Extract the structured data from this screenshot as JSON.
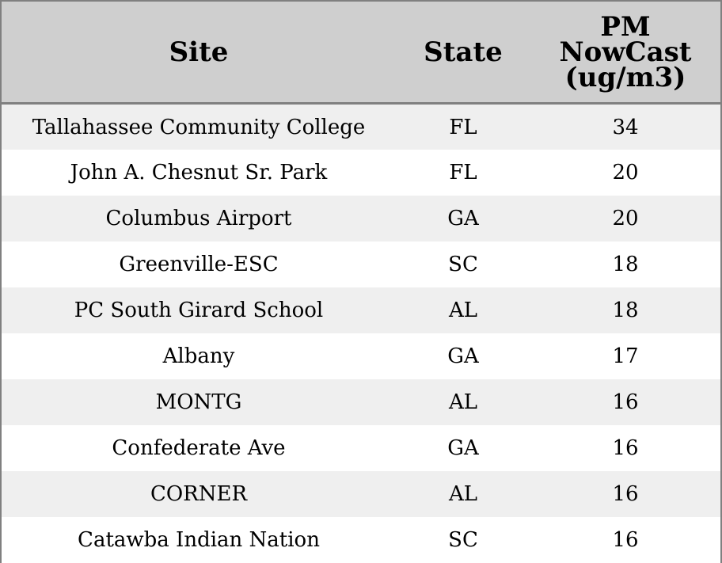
{
  "chart_data": {
    "type": "table",
    "columns": [
      "Site",
      "State",
      "PM NowCast (ug/m3)"
    ],
    "header_lines": {
      "site": "Site",
      "state": "State",
      "pm_line1": "PM",
      "pm_line2": "NowCast",
      "pm_line3": "(ug/m3)"
    },
    "rows": [
      {
        "site": "Tallahassee Community College",
        "state": "FL",
        "pm": "34"
      },
      {
        "site": "John A. Chesnut Sr. Park",
        "state": "FL",
        "pm": "20"
      },
      {
        "site": "Columbus Airport",
        "state": "GA",
        "pm": "20"
      },
      {
        "site": "Greenville-ESC",
        "state": "SC",
        "pm": "18"
      },
      {
        "site": "PC South Girard School",
        "state": "AL",
        "pm": "18"
      },
      {
        "site": "Albany",
        "state": "GA",
        "pm": "17"
      },
      {
        "site": "MONTG",
        "state": "AL",
        "pm": "16"
      },
      {
        "site": "Confederate Ave",
        "state": "GA",
        "pm": "16"
      },
      {
        "site": "CORNER",
        "state": "AL",
        "pm": "16"
      },
      {
        "site": "Catawba Indian Nation",
        "state": "SC",
        "pm": "16"
      }
    ],
    "colors": {
      "header_background": "#cfcfcf",
      "striped_row_background": "#efefef",
      "plain_row_background": "#ffffff",
      "border": "#808080"
    }
  }
}
